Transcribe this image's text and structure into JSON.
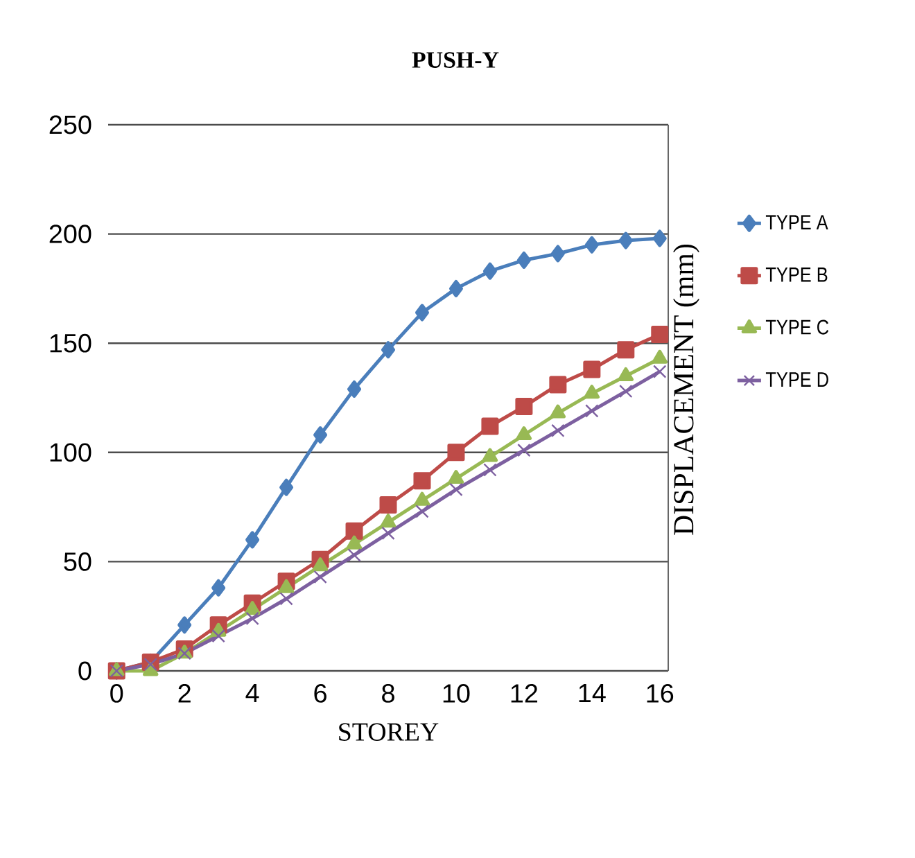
{
  "chart_data": {
    "type": "line",
    "title": "PUSH-Y",
    "xlabel": "STOREY",
    "ylabel": "DISPLACEMENT (mm)",
    "x": [
      0,
      1,
      2,
      3,
      4,
      5,
      6,
      7,
      8,
      9,
      10,
      11,
      12,
      13,
      14,
      15,
      16
    ],
    "xlim": [
      -0.25,
      16.25
    ],
    "xticks": [
      0,
      2,
      4,
      6,
      8,
      10,
      12,
      14,
      16
    ],
    "ylim": [
      0,
      250
    ],
    "yticks": [
      0,
      50,
      100,
      150,
      200,
      250
    ],
    "grid": "y",
    "legend": "right",
    "series": [
      {
        "name": "TYPE A",
        "color": "#4a7ebb",
        "marker": "diamond",
        "values": [
          0,
          4,
          21,
          38,
          60,
          84,
          108,
          129,
          147,
          164,
          175,
          183,
          188,
          191,
          195,
          197,
          198
        ]
      },
      {
        "name": "TYPE B",
        "color": "#be4b48",
        "marker": "square",
        "values": [
          0,
          4,
          10,
          21,
          31,
          41,
          51,
          64,
          76,
          87,
          100,
          112,
          121,
          131,
          138,
          147,
          154
        ]
      },
      {
        "name": "TYPE C",
        "color": "#98b954",
        "marker": "triangle",
        "values": [
          0,
          0,
          8,
          18,
          28,
          38,
          48,
          58,
          68,
          78,
          88,
          98,
          108,
          118,
          127,
          135,
          143
        ]
      },
      {
        "name": "TYPE D",
        "color": "#7d60a0",
        "marker": "cross",
        "values": [
          0,
          3,
          8,
          16,
          24,
          33,
          43,
          53,
          63,
          73,
          83,
          92,
          101,
          110,
          119,
          128,
          137
        ]
      }
    ]
  }
}
